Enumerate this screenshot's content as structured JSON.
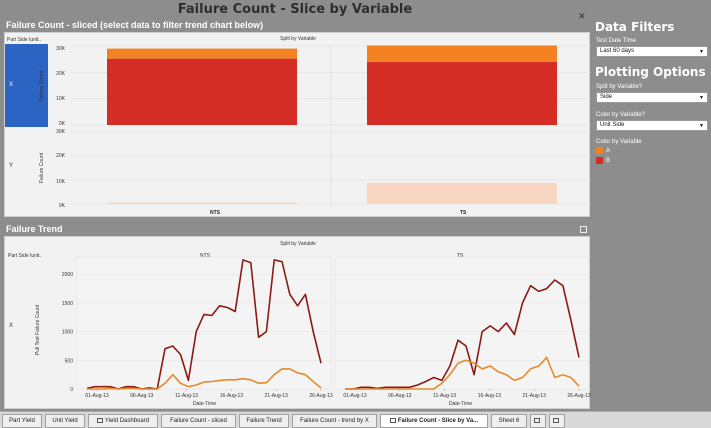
{
  "title": "Failure Count - Slice by Variable",
  "top_section": {
    "title": "Failure Count - sliced",
    "subtitle": "(select data to filter trend chart below)",
    "row_header": "Part Side Iunit..",
    "col_header": "Split by Variable",
    "rows": [
      "X",
      "Y"
    ],
    "columns": [
      "NTS",
      "TS"
    ],
    "y_axis_title": "Failure Count",
    "y_ticks_top": [
      "30K",
      "20K",
      "10K",
      "0K"
    ],
    "y_ticks_bottom": [
      "30K",
      "20K",
      "10K",
      "0K"
    ]
  },
  "trend_section": {
    "title": "Failure Trend",
    "row_header": "Part Side Iunit..",
    "col_header": "Split by Variable",
    "row_label": "X",
    "columns": [
      "NTS",
      "TS"
    ],
    "y_axis_title": "Pull Test Failure Count",
    "x_axis_title": "Date-Time",
    "y_ticks": [
      "2000",
      "1500",
      "1000",
      "500",
      "0"
    ],
    "x_ticks": [
      "01-Aug-13",
      "06-Aug-13",
      "11-Aug-13",
      "16-Aug-13",
      "21-Aug-13",
      "26-Aug-13"
    ]
  },
  "chart_data": [
    {
      "type": "bar",
      "categories": [
        "NTS",
        "TS"
      ],
      "rows": [
        "X",
        "Y"
      ],
      "series": [
        {
          "name": "A",
          "values_X": [
            3800,
            6200
          ],
          "values_Y": [
            200,
            8800
          ]
        },
        {
          "name": "B",
          "values_X": [
            25200,
            24000
          ],
          "values_Y": [
            0,
            0
          ]
        }
      ],
      "ylim": [
        0,
        30000
      ],
      "ylabel": "Failure Count",
      "stacked": true
    },
    {
      "type": "line",
      "xlabel": "Date-Time",
      "ylabel": "Pull Test Failure Count",
      "ylim": [
        0,
        2300
      ],
      "panels": [
        {
          "name": "NTS",
          "series": [
            {
              "name": "B",
              "values": [
                10,
                40,
                40,
                40,
                0,
                40,
                40,
                0,
                20,
                0,
                700,
                750,
                600,
                150,
                1000,
                1300,
                1280,
                1450,
                1420,
                1350,
                2250,
                2200,
                900,
                1000,
                2250,
                2220,
                1650,
                1450,
                1650,
                1000,
                450
              ]
            },
            {
              "name": "A",
              "values": [
                0,
                0,
                0,
                10,
                0,
                10,
                10,
                0,
                0,
                0,
                100,
                250,
                100,
                40,
                70,
                120,
                130,
                150,
                160,
                160,
                180,
                160,
                100,
                110,
                250,
                350,
                350,
                280,
                250,
                130,
                20
              ]
            }
          ]
        },
        {
          "name": "TS",
          "series": [
            {
              "name": "B",
              "values": [
                0,
                0,
                30,
                30,
                10,
                30,
                30,
                30,
                30,
                70,
                130,
                200,
                150,
                400,
                850,
                750,
                250,
                1000,
                1100,
                1000,
                1150,
                950,
                1500,
                1800,
                1700,
                1750,
                1900,
                1800,
                1200,
                550
              ]
            },
            {
              "name": "A",
              "values": [
                0,
                0,
                0,
                0,
                0,
                0,
                0,
                0,
                0,
                0,
                0,
                0,
                100,
                250,
                450,
                500,
                450,
                350,
                400,
                300,
                250,
                150,
                200,
                350,
                400,
                550,
                200,
                250,
                200,
                50
              ]
            }
          ]
        }
      ]
    }
  ],
  "right_panel": {
    "filters_title": "Data Filters",
    "test_date_label": "Test Date Time",
    "test_date_value": "Last 60 days",
    "plotting_title": "Plotting Options",
    "split_label": "Split by Variable?",
    "split_value": "Side",
    "color_label": "Color by Variable?",
    "color_value": "Unit Side",
    "legend_title": "Color by Variable",
    "legend": [
      {
        "name": "A",
        "color": "#f28121"
      },
      {
        "name": "B",
        "color": "#d42d26"
      }
    ]
  },
  "tabs": [
    "Part Yield",
    "Unit Yield",
    "Yield Dashboard",
    "Failure Count - sliced",
    "Failure Trend",
    "Failure Count - trend by X",
    "Failure Count - Slice by Va...",
    "Sheet 6"
  ],
  "active_tab": "Failure Count - Slice by Va...",
  "colors": {
    "a_orange": "#f28121",
    "b_red": "#d42d26",
    "a_line": "#e58a2b",
    "b_line": "#8b1a14",
    "faded_peach": "#f9d6c2",
    "selection_blue": "#2c64c4"
  }
}
